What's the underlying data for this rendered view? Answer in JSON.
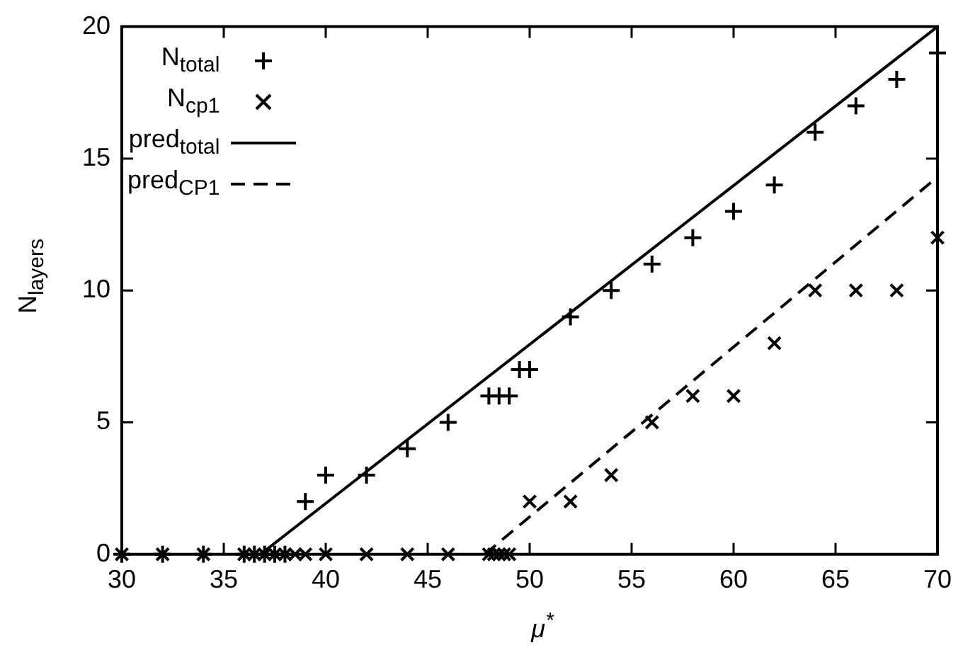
{
  "chart_data": {
    "type": "scatter",
    "xlabel": "μ$^{*}$",
    "ylabel": "N$_{layers}$",
    "xlim": [
      30,
      70
    ],
    "xticks": [
      30,
      35,
      40,
      45,
      50,
      55,
      60,
      65,
      70
    ],
    "ylim": [
      0,
      20
    ],
    "yticks": [
      0,
      5,
      10,
      15,
      20
    ],
    "grid": false,
    "legend": "top left",
    "series": [
      {
        "name": "N$_{total}$",
        "type": "scatter",
        "marker": "cross",
        "color": "#000000",
        "x": [
          30,
          32,
          34,
          36,
          36.5,
          37,
          37.5,
          38,
          39,
          40,
          42,
          44,
          46,
          48,
          48.5,
          49,
          49.5,
          50,
          52,
          54,
          56,
          58,
          60,
          62,
          64,
          66,
          68,
          70
        ],
        "values": [
          0,
          0,
          0,
          0,
          0,
          0,
          0,
          0,
          2,
          3,
          3,
          4,
          5,
          6,
          6,
          6,
          7,
          7,
          9,
          10,
          11,
          12,
          13,
          14,
          16,
          17,
          18,
          19
        ]
      },
      {
        "name": "N$_{cp1}$",
        "type": "scatter",
        "marker": "x",
        "color": "#000000",
        "x": [
          30,
          32,
          34,
          36,
          36.5,
          37,
          37.5,
          38,
          38.5,
          39,
          40,
          42,
          44,
          46,
          48,
          48.25,
          48.5,
          48.75,
          49,
          50,
          52,
          54,
          56,
          58,
          60,
          62,
          64,
          66,
          68,
          70
        ],
        "values": [
          0,
          0,
          0,
          0,
          0,
          0,
          0,
          0,
          0,
          0,
          0,
          0,
          0,
          0,
          0,
          0,
          0,
          0,
          0,
          2,
          2,
          3,
          5,
          6,
          6,
          8,
          10,
          10,
          10,
          12
        ]
      },
      {
        "name": "pred$_{total}$",
        "type": "line",
        "marker": "none",
        "line_style": "solid",
        "color": "#000000",
        "x": [
          36.8,
          70
        ],
        "values": [
          0,
          20
        ]
      },
      {
        "name": "pred$_{CP1}$",
        "type": "line",
        "marker": "none",
        "line_style": "dashed",
        "color": "#000000",
        "x": [
          47.8,
          70
        ],
        "values": [
          0,
          14.3
        ]
      }
    ]
  }
}
